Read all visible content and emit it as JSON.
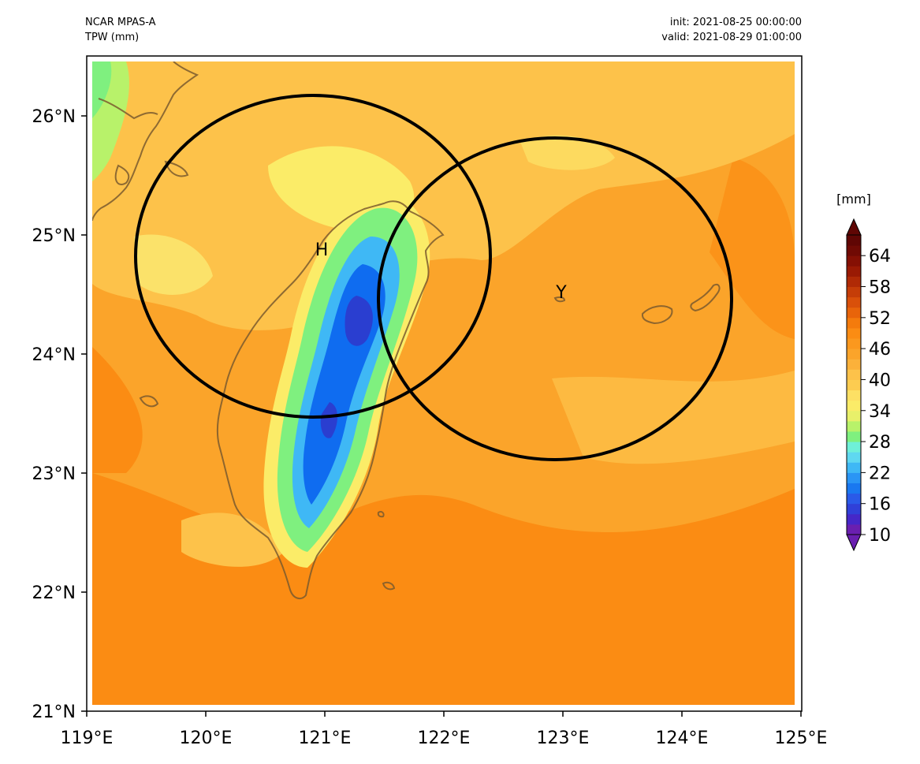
{
  "header": {
    "left": [
      "NCAR MPAS-A",
      "TPW (mm)"
    ],
    "right": [
      "init: 2021-08-25 00:00:00",
      "valid: 2021-08-29 01:00:00"
    ]
  },
  "map": {
    "lon_range": [
      119,
      125
    ],
    "lat_range": [
      21,
      26.5
    ],
    "lon_ticks": [
      "119°E",
      "120°E",
      "121°E",
      "122°E",
      "123°E",
      "124°E",
      "125°E"
    ],
    "lat_ticks": [
      "21°N",
      "22°N",
      "23°N",
      "24°N",
      "25°N",
      "26°N"
    ],
    "points": [
      {
        "label": "H",
        "lon": 120.98,
        "lat": 24.83
      },
      {
        "label": "Y",
        "lon": 122.99,
        "lat": 24.47
      }
    ],
    "circles": [
      {
        "name": "H",
        "center_lon": 120.92,
        "center_lat": 24.83,
        "r_lon": 1.48,
        "r_lat": 1.35
      },
      {
        "name": "Y",
        "center_lon": 122.94,
        "center_lat": 24.47,
        "r_lon": 1.48,
        "r_lat": 1.35
      }
    ],
    "colors": {
      "bg_orange": "#fba42a",
      "deep_orange": "#fb8c13",
      "light_orange": "#fdc24a",
      "yellow": "#fbec68",
      "coastline": "#7a5a2e"
    }
  },
  "colorbar": {
    "unit": "[mm]",
    "min": 10,
    "max": 68,
    "step": 2,
    "tick_labels": [
      "10",
      "16",
      "22",
      "28",
      "34",
      "40",
      "46",
      "52",
      "58",
      "64"
    ],
    "extend": "both"
  }
}
